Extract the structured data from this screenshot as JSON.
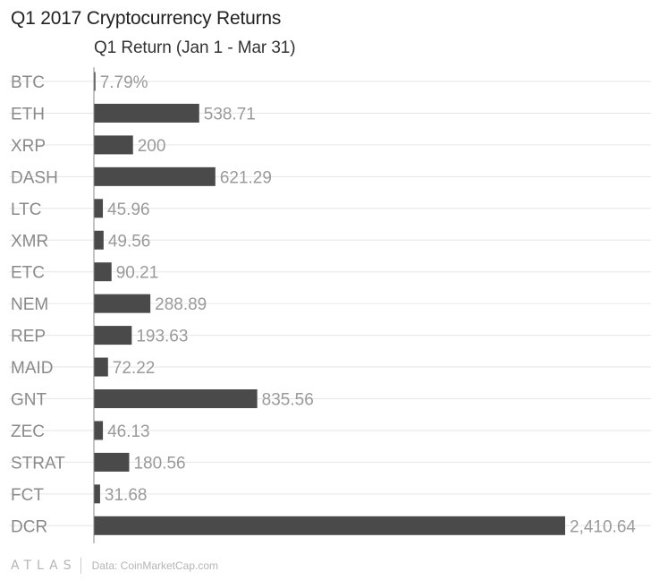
{
  "chart_data": {
    "type": "bar",
    "orientation": "horizontal",
    "title": "Q1 2017 Cryptocurrency Returns",
    "subtitle": "Q1 Return (Jan 1 - Mar 31)",
    "categories": [
      "BTC",
      "ETH",
      "XRP",
      "DASH",
      "LTC",
      "XMR",
      "ETC",
      "NEM",
      "REP",
      "MAID",
      "GNT",
      "ZEC",
      "STRAT",
      "FCT",
      "DCR"
    ],
    "values": [
      7.79,
      538.71,
      200,
      621.29,
      45.96,
      49.56,
      90.21,
      288.89,
      193.63,
      72.22,
      835.56,
      46.13,
      180.56,
      31.68,
      2410.64
    ],
    "value_labels": [
      "7.79%",
      "538.71",
      "200",
      "621.29",
      "45.96",
      "49.56",
      "90.21",
      "288.89",
      "193.63",
      "72.22",
      "835.56",
      "46.13",
      "180.56",
      "31.68",
      "2,410.64"
    ],
    "xlim": [
      0,
      2410.64
    ],
    "grid": true,
    "colors": {
      "bar": "#4a4a4a",
      "grid": "#e6e6e6",
      "axis": "#8a8a8a",
      "category_text": "#8a8a8a",
      "value_text": "#9a9a9a"
    }
  },
  "footer": {
    "brand": "ATLAS",
    "source": "Data: CoinMarketCap.com"
  }
}
